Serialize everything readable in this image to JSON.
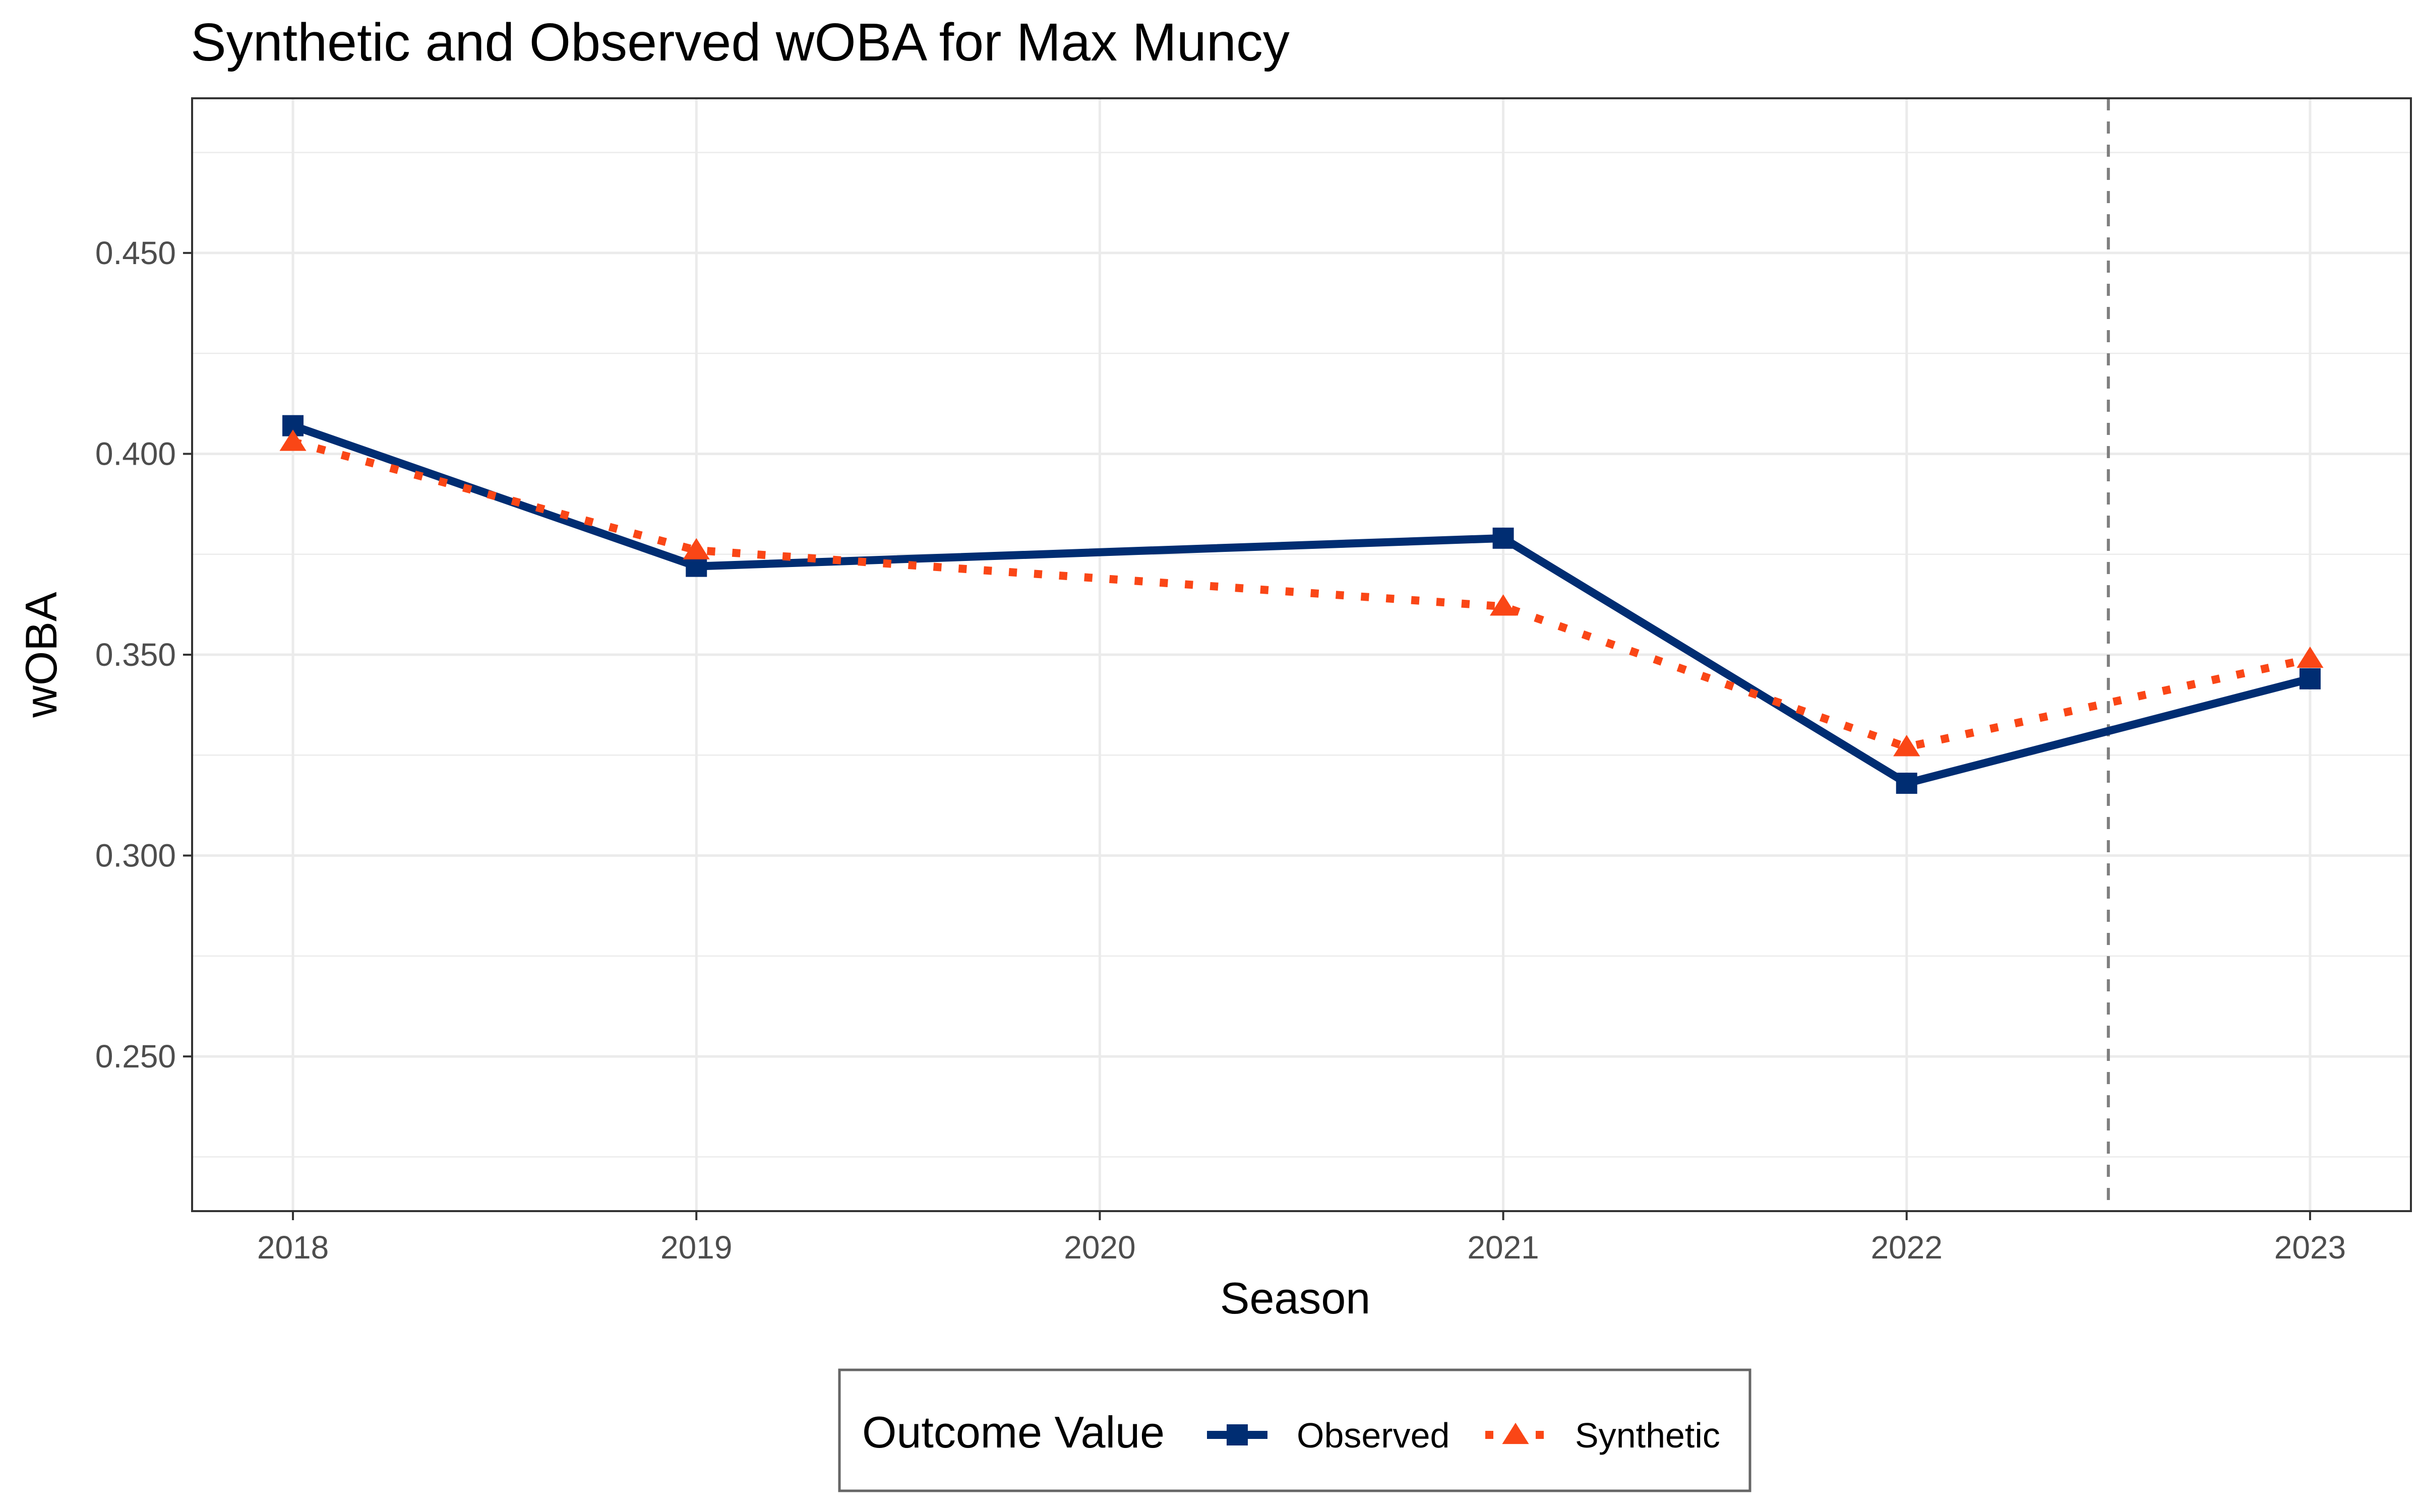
{
  "chart_data": {
    "type": "line",
    "title": "Synthetic and Observed wOBA for Max Muncy",
    "xlabel": "Season",
    "ylabel": "wOBA",
    "x": [
      2018,
      2019,
      2020,
      2021,
      2022,
      2023
    ],
    "xlim": [
      2017.75,
      2023.25
    ],
    "ylim": [
      0.2115,
      0.4885
    ],
    "yticks": [
      0.25,
      0.3,
      0.35,
      0.4,
      0.45
    ],
    "ytick_labels": [
      "0.250",
      "0.300",
      "0.350",
      "0.400",
      "0.450"
    ],
    "xtick_labels": [
      "2018",
      "2019",
      "2020",
      "2021",
      "2022",
      "2023"
    ],
    "grid": true,
    "vline": {
      "x": 2022.5,
      "style": "dashed",
      "color": "#7f7f7f"
    },
    "series": [
      {
        "name": "Observed",
        "x": [
          2018,
          2019,
          2021,
          2022,
          2023
        ],
        "values": [
          0.407,
          0.372,
          0.379,
          0.318,
          0.344
        ],
        "color": "#002d72",
        "line": "solid",
        "marker": "square"
      },
      {
        "name": "Synthetic",
        "x": [
          2018,
          2019,
          2021,
          2022,
          2023
        ],
        "values": [
          0.403,
          0.376,
          0.362,
          0.327,
          0.349
        ],
        "color": "#fa4616",
        "line": "dotted",
        "marker": "triangle"
      }
    ],
    "legend": {
      "title": "Outcome Value",
      "position": "bottom"
    }
  }
}
